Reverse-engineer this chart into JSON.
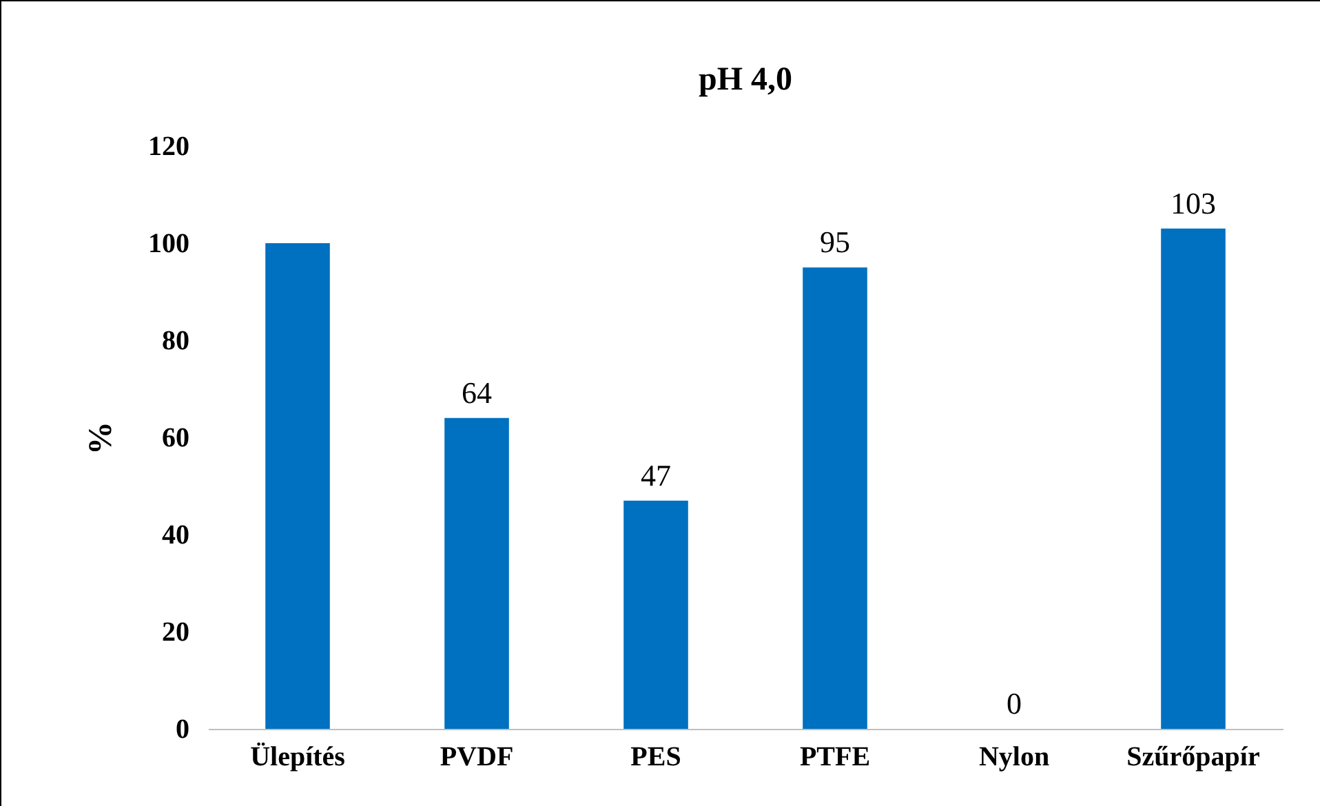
{
  "chart_data": {
    "type": "bar",
    "title": "pH 4,0",
    "ylabel": "%",
    "categories": [
      "Ülepítés",
      "PVDF",
      "PES",
      "PTFE",
      "Nylon",
      "Szűrőpapír"
    ],
    "values": [
      100,
      64,
      47,
      95,
      0,
      103
    ],
    "value_labels": [
      null,
      "64",
      "47",
      "95",
      "0",
      "103"
    ],
    "color": "#0070c0",
    "ylim": [
      0,
      120
    ],
    "yticks": [
      0,
      20,
      40,
      60,
      80,
      100,
      120
    ],
    "grid": false
  }
}
